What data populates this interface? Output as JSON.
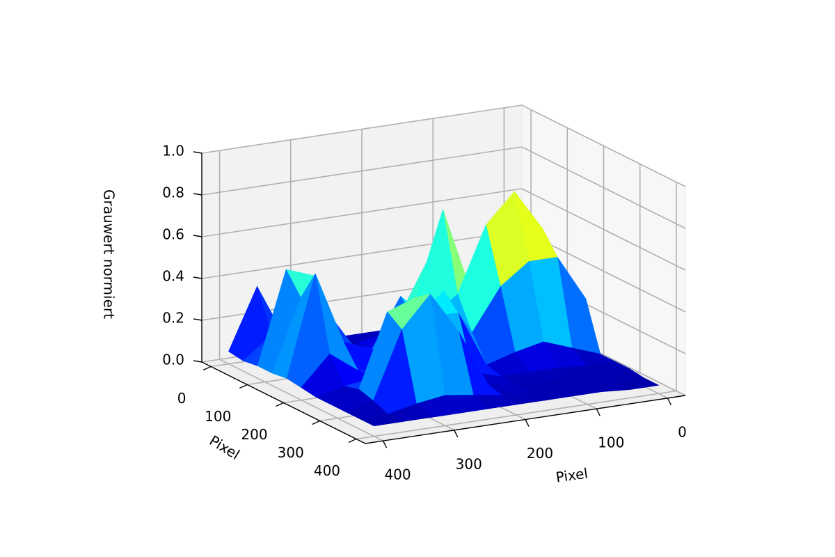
{
  "chart_data": {
    "type": "surface3d",
    "xlabel": "Pixel",
    "ylabel": "Pixel",
    "zlabel": "Grauwert normiert",
    "colormap": "jet",
    "grid": true,
    "xlim": [
      -25,
      425
    ],
    "ylim": [
      -25,
      425
    ],
    "zlim": [
      0,
      1
    ],
    "xticks": [
      0,
      100,
      200,
      300,
      400
    ],
    "yticks": [
      0,
      100,
      200,
      300,
      400
    ],
    "zticks": [
      {
        "value": 0,
        "label": "0.0"
      },
      {
        "value": 0.2,
        "label": "0.2"
      },
      {
        "value": 0.4,
        "label": "0.4"
      },
      {
        "value": 0.6,
        "label": "0.6"
      },
      {
        "value": 0.8,
        "label": "0.8"
      },
      {
        "value": 1,
        "label": "1.0"
      }
    ],
    "x": [
      0,
      40,
      80,
      120,
      160,
      200,
      240,
      280,
      320,
      360,
      400
    ],
    "y": [
      0,
      40,
      80,
      120,
      160,
      200,
      240,
      280,
      320,
      360,
      400
    ],
    "z": [
      [
        0.05,
        0.05,
        0.05,
        0.05,
        0.05,
        0.05,
        0.05,
        0.05,
        0.08,
        0.35,
        0.06
      ],
      [
        0.05,
        0.05,
        0.05,
        0.06,
        0.1,
        0.08,
        0.05,
        0.05,
        0.12,
        0.15,
        0.05
      ],
      [
        0.05,
        0.05,
        0.06,
        0.15,
        0.45,
        0.2,
        0.06,
        0.08,
        0.45,
        0.5,
        0.06
      ],
      [
        0.05,
        0.1,
        0.2,
        0.3,
        0.72,
        0.3,
        0.08,
        0.1,
        0.3,
        0.4,
        0.06
      ],
      [
        0.2,
        0.6,
        0.8,
        0.66,
        0.35,
        0.25,
        0.38,
        0.15,
        0.2,
        0.55,
        0.07
      ],
      [
        0.28,
        0.5,
        0.5,
        0.4,
        0.2,
        0.42,
        0.3,
        0.1,
        0.1,
        0.2,
        0.06
      ],
      [
        0.05,
        0.1,
        0.15,
        0.12,
        0.08,
        0.35,
        0.35,
        0.3,
        0.1,
        0.08,
        0.05
      ],
      [
        0.05,
        0.05,
        0.06,
        0.06,
        0.06,
        0.1,
        0.4,
        0.5,
        0.45,
        0.1,
        0.05
      ],
      [
        0.05,
        0.05,
        0.05,
        0.05,
        0.05,
        0.08,
        0.35,
        0.55,
        0.4,
        0.08,
        0.05
      ],
      [
        0.04,
        0.05,
        0.05,
        0.05,
        0.05,
        0.06,
        0.08,
        0.1,
        0.08,
        0.05,
        0.05
      ],
      [
        0.04,
        0.04,
        0.05,
        0.05,
        0.05,
        0.05,
        0.05,
        0.05,
        0.05,
        0.05,
        0.05
      ]
    ]
  }
}
